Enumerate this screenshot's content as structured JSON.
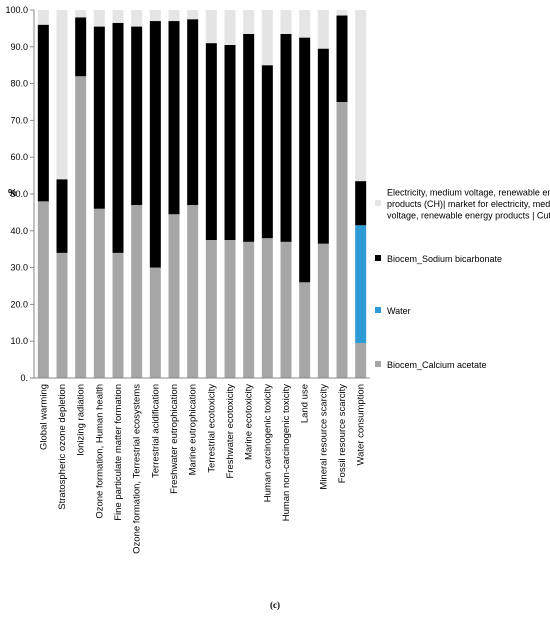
{
  "chart_data": {
    "type": "bar",
    "stacked": true,
    "ylabel": "%",
    "ylim": [
      0,
      100
    ],
    "yticks": [
      "0.",
      "10.0",
      "20.0",
      "30.0",
      "40.0",
      "50.0",
      "60.0",
      "70.0",
      "80.0",
      "90.0",
      "100.0"
    ],
    "grid": false,
    "legend_position": "right",
    "categories": [
      "Global warming",
      "Stratospheric ozone depletion",
      "Ionizing radiation",
      "Ozone formation, Human health",
      "Fine particulate matter formation",
      "Ozone formation, Terrestrial ecosystems",
      "Terrestrial acidification",
      "Freshwater eutrophication",
      "Marine eutrophication",
      "Terrestrial ecotoxicity",
      "Freshwater ecotoxicity",
      "Marine ecotoxicity",
      "Human carcinogenic toxicity",
      "Human non-carcinogenic toxicity",
      "Land use",
      "Mineral resource scarcity",
      "Fossil resource scarcity",
      "Water consumption"
    ],
    "series": [
      {
        "name": "Biocem_Calcium acetate",
        "color": "#a6a6a6",
        "values": [
          48,
          34,
          82,
          46,
          34,
          47,
          30,
          44.5,
          47,
          37.5,
          37.5,
          37,
          38,
          37,
          26,
          36.5,
          75,
          9.5
        ]
      },
      {
        "name": "Water",
        "color": "#2e9bd6",
        "values": [
          0,
          0,
          0,
          0,
          0,
          0,
          0,
          0,
          0,
          0,
          0,
          0,
          0,
          0,
          0,
          0,
          0,
          32
        ]
      },
      {
        "name": "Biocem_Sodium bicarbonate",
        "color": "#000000",
        "values": [
          48,
          20,
          16,
          49.5,
          62.5,
          48.5,
          67,
          52.5,
          50.5,
          53.5,
          53,
          56.5,
          47,
          56.5,
          66.5,
          53,
          23.5,
          12
        ]
      },
      {
        "name": "Electricity, medium voltage, renewable energy products (CH)| market for electricity, medium voltage, renewable energy products | Cut-off, U",
        "color": "#e5e5e5",
        "values": [
          4,
          46,
          2,
          4.5,
          3.5,
          4.5,
          3,
          3,
          2.5,
          9,
          9.5,
          6.5,
          15,
          6.5,
          7.5,
          10.5,
          1.5,
          46.5
        ]
      }
    ],
    "legend_lines": [
      [
        "Electricity, medium voltage, renewable energy",
        "products (CH)| market for electricity, medium",
        "voltage, renewable energy products | Cut-off, U"
      ],
      [
        "Biocem_Sodium bicarbonate"
      ],
      [
        "Water"
      ],
      [
        "Biocem_Calcium acetate"
      ]
    ]
  },
  "caption": "(c)"
}
